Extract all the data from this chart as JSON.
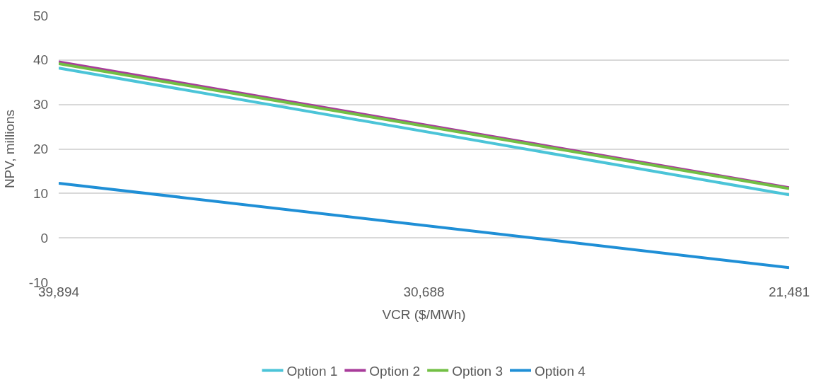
{
  "chart_data": {
    "type": "line",
    "xlabel": "VCR ($/MWh)",
    "ylabel": "NPV, millions",
    "x": [
      39894,
      21481
    ],
    "series": [
      {
        "name": "Option 1",
        "color": "#4bc4d8",
        "values": [
          38.2,
          9.7
        ]
      },
      {
        "name": "Option 2",
        "color": "#a83b9a",
        "values": [
          39.6,
          11.3
        ]
      },
      {
        "name": "Option 3",
        "color": "#72bf44",
        "values": [
          39.2,
          11.1
        ]
      },
      {
        "name": "Option 4",
        "color": "#1f8fd6",
        "values": [
          12.3,
          -6.7
        ]
      }
    ],
    "xlim": [
      39894,
      21481
    ],
    "xticks": [
      {
        "value": 39894,
        "label": "39,894"
      },
      {
        "value": 30688,
        "label": "30,688"
      },
      {
        "value": 21481,
        "label": "21,481"
      }
    ],
    "ylim": [
      -10,
      50
    ],
    "yticks": [
      -10,
      0,
      10,
      20,
      30,
      40,
      50
    ],
    "grid": "y",
    "legend": "bottom",
    "marker": "none",
    "line_style": "solid"
  }
}
